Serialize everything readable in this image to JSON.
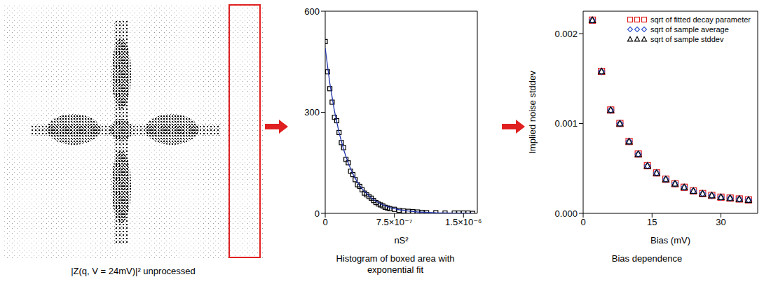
{
  "image_panel": {
    "caption": "|Z(q, V = 24mV)|² unprocessed"
  },
  "chart_data": [
    {
      "type": "scatter",
      "title": "Histogram of boxed area with exponential fit",
      "x_label": "nS²",
      "xlim": [
        0,
        1.65e-06
      ],
      "xticks": [
        0,
        {
          "value": 7.5e-07,
          "label": "7.5×10⁻⁷"
        },
        {
          "value": 1.5e-06,
          "label": "1.5×10⁻⁶"
        }
      ],
      "ylim": [
        0,
        600
      ],
      "yticks": [
        0,
        300,
        600
      ],
      "series": [
        {
          "type": "scatter",
          "color": "#000000",
          "marker": "square",
          "x": [
            0,
            2.5e-08,
            5e-08,
            7.5e-08,
            1e-07,
            1.25e-07,
            1.5e-07,
            1.75e-07,
            2e-07,
            2.25e-07,
            2.5e-07,
            2.75e-07,
            3e-07,
            3.25e-07,
            3.5e-07,
            3.75e-07,
            4e-07,
            4.25e-07,
            4.5e-07,
            4.75e-07,
            5e-07,
            5.25e-07,
            5.5e-07,
            5.75e-07,
            6e-07,
            6.25e-07,
            6.5e-07,
            6.75e-07,
            7e-07,
            7.5e-07,
            8e-07,
            8.5e-07,
            9e-07,
            9.5e-07,
            1e-06,
            1.05e-06,
            1.1e-06,
            1.2e-06,
            1.3e-06,
            1.4e-06,
            1.45e-06,
            1.5e-06,
            1.55e-06,
            1.6e-06
          ],
          "values": [
            510,
            420,
            370,
            330,
            285,
            275,
            240,
            210,
            195,
            160,
            150,
            125,
            115,
            100,
            85,
            80,
            70,
            60,
            55,
            50,
            45,
            38,
            32,
            28,
            25,
            22,
            18,
            16,
            14,
            12,
            9,
            7,
            6,
            5,
            4,
            3,
            2,
            2,
            1,
            1,
            1,
            1,
            1,
            0
          ]
        },
        {
          "type": "line",
          "color": "#2233aa",
          "x": [
            0,
            5e-08,
            1e-07,
            1.5e-07,
            2e-07,
            2.5e-07,
            3e-07,
            3.5e-07,
            4e-07,
            5e-07,
            6e-07,
            7e-07,
            8e-07,
            9e-07,
            1e-06,
            1.2e-06,
            1.4e-06,
            1.6e-06
          ],
          "values": [
            490,
            386,
            304,
            240,
            189,
            149,
            117,
            92,
            73,
            45,
            28,
            17.5,
            10.9,
            6.8,
            4.2,
            1.6,
            0.6,
            0.24
          ]
        }
      ]
    },
    {
      "type": "scatter",
      "title": "Bias dependence",
      "x_label": "Bias (mV)",
      "y_label": "Implied noise stddev",
      "xlim": [
        0,
        38
      ],
      "xticks": [
        0,
        15,
        30
      ],
      "ylim": [
        0,
        0.00225
      ],
      "yticks": [
        {
          "value": 0,
          "label": "0.000"
        },
        {
          "value": 0.001,
          "label": "0.001"
        },
        {
          "value": 0.002,
          "label": "0.002"
        }
      ],
      "legend": "upper right",
      "series": [
        {
          "name": "sqrt of fitted decay parameter",
          "type": "scatter",
          "color": "#e02020",
          "marker": "square",
          "x": [
            2,
            4,
            6,
            8,
            10,
            12,
            14,
            16,
            18,
            20,
            22,
            24,
            26,
            28,
            30,
            32,
            34,
            36
          ],
          "values": [
            0.00215,
            0.00158,
            0.00115,
            0.001,
            0.0008,
            0.00066,
            0.00053,
            0.00045,
            0.00038,
            0.00033,
            0.00029,
            0.00025,
            0.00022,
            0.0002,
            0.00018,
            0.00017,
            0.00016,
            0.00015
          ]
        },
        {
          "name": "sqrt of sample average",
          "type": "scatter",
          "color": "#3355cc",
          "marker": "diamond",
          "x": [
            2,
            4,
            6,
            8,
            10,
            12,
            14,
            16,
            18,
            20,
            22,
            24,
            26,
            28,
            30,
            32,
            34,
            36
          ],
          "values": [
            0.00215,
            0.00158,
            0.00115,
            0.001,
            0.0008,
            0.00066,
            0.00053,
            0.00045,
            0.00038,
            0.00033,
            0.00029,
            0.00025,
            0.00022,
            0.0002,
            0.00018,
            0.00017,
            0.00016,
            0.00015
          ]
        },
        {
          "name": "sqrt of sample stddev",
          "type": "scatter",
          "color": "#000000",
          "marker": "triangle",
          "x": [
            2,
            4,
            6,
            8,
            10,
            12,
            14,
            16,
            18,
            20,
            22,
            24,
            26,
            28,
            30,
            32,
            34,
            36
          ],
          "values": [
            0.00215,
            0.00158,
            0.00115,
            0.001,
            0.0008,
            0.00066,
            0.00053,
            0.00045,
            0.00038,
            0.00033,
            0.00029,
            0.00025,
            0.00022,
            0.0002,
            0.00018,
            0.00017,
            0.00016,
            0.00015
          ]
        }
      ]
    }
  ]
}
